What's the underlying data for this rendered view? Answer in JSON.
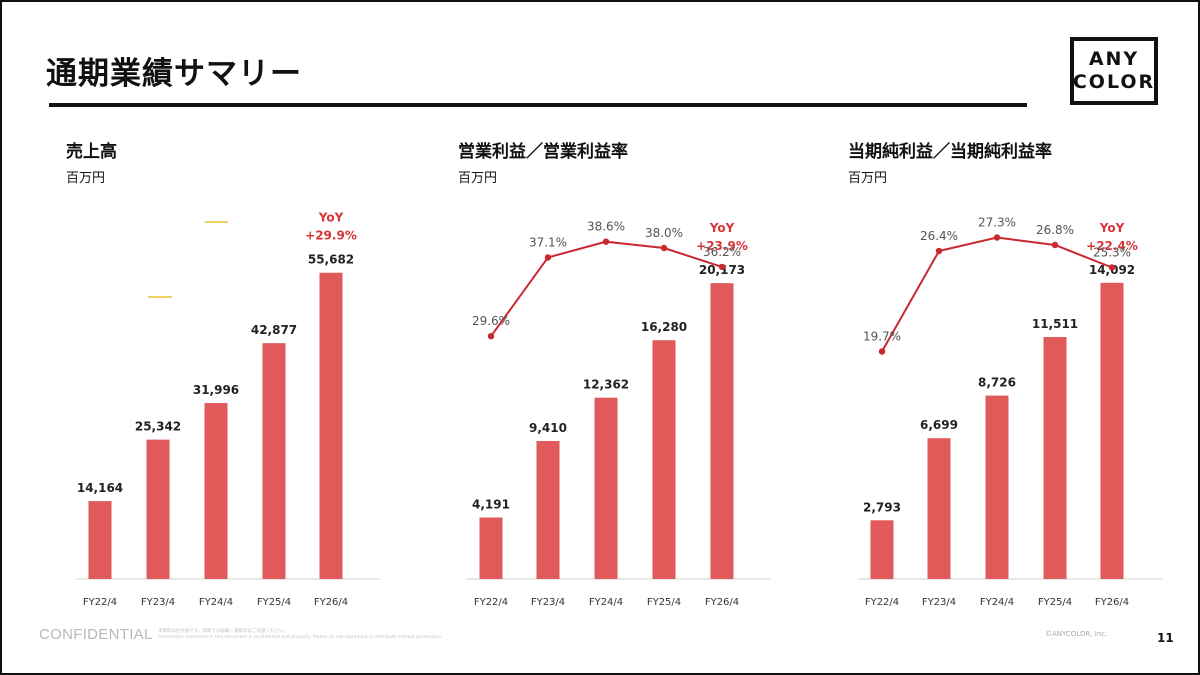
{
  "slide": {
    "title": "通期業績サマリー",
    "logo": {
      "line1": "ANY",
      "line2": "COLOR"
    },
    "footer": {
      "confidential": "CONFIDENTIAL",
      "fine_print_1": "本資料は社外秘です。無断での転載・複製等はご遠慮ください。",
      "fine_print_2": "Information contained in this document is confidential and property. Please do not reproduce or distribute without permission.",
      "copyright": "©ANYCOLOR, Inc.",
      "page_number": "11"
    }
  },
  "colors": {
    "bar": "#E05A5A",
    "line": "#C8282E",
    "yoy": "#D8353A",
    "accent_dash": "#E8C436"
  },
  "chart_data": [
    {
      "type": "bar",
      "title": "売上高",
      "unit": "百万円",
      "categories": [
        "FY22/4",
        "FY23/4",
        "FY24/4",
        "FY25/4",
        "FY26/4"
      ],
      "values": [
        14164,
        25342,
        31996,
        42877,
        55682
      ],
      "value_labels": [
        "14,164",
        "25,342",
        "31,996",
        "42,877",
        "55,682"
      ],
      "yoy_label": "YoY",
      "yoy_value": "+29.9%",
      "ylim": [
        0,
        60000
      ]
    },
    {
      "type": "bar+line",
      "title": "営業利益／営業利益率",
      "unit": "百万円",
      "categories": [
        "FY22/4",
        "FY23/4",
        "FY24/4",
        "FY25/4",
        "FY26/4"
      ],
      "values": [
        4191,
        9410,
        12362,
        16280,
        20173
      ],
      "value_labels": [
        "4,191",
        "9,410",
        "12,362",
        "16,280",
        "20,173"
      ],
      "rates": [
        29.6,
        37.1,
        38.6,
        38.0,
        36.2
      ],
      "rate_labels": [
        "29.6%",
        "37.1%",
        "38.6%",
        "38.0%",
        "36.2%"
      ],
      "yoy_label": "YoY",
      "yoy_value": "+23.9%",
      "ylim": [
        0,
        22500
      ],
      "rate_lim": [
        0,
        40
      ]
    },
    {
      "type": "bar+line",
      "title": "当期純利益／当期純利益率",
      "unit": "百万円",
      "categories": [
        "FY22/4",
        "FY23/4",
        "FY24/4",
        "FY25/4",
        "FY26/4"
      ],
      "values": [
        2793,
        6699,
        8726,
        11511,
        14092
      ],
      "value_labels": [
        "2,793",
        "6,699",
        "8,726",
        "11,511",
        "14,092"
      ],
      "rates": [
        19.7,
        26.4,
        27.3,
        26.8,
        25.3
      ],
      "rate_labels": [
        "19.7%",
        "26.4%",
        "27.3%",
        "26.8%",
        "25.3%"
      ],
      "yoy_label": "YoY",
      "yoy_value": "+22.4%",
      "ylim": [
        0,
        15700
      ],
      "rate_lim": [
        0,
        28
      ]
    }
  ]
}
